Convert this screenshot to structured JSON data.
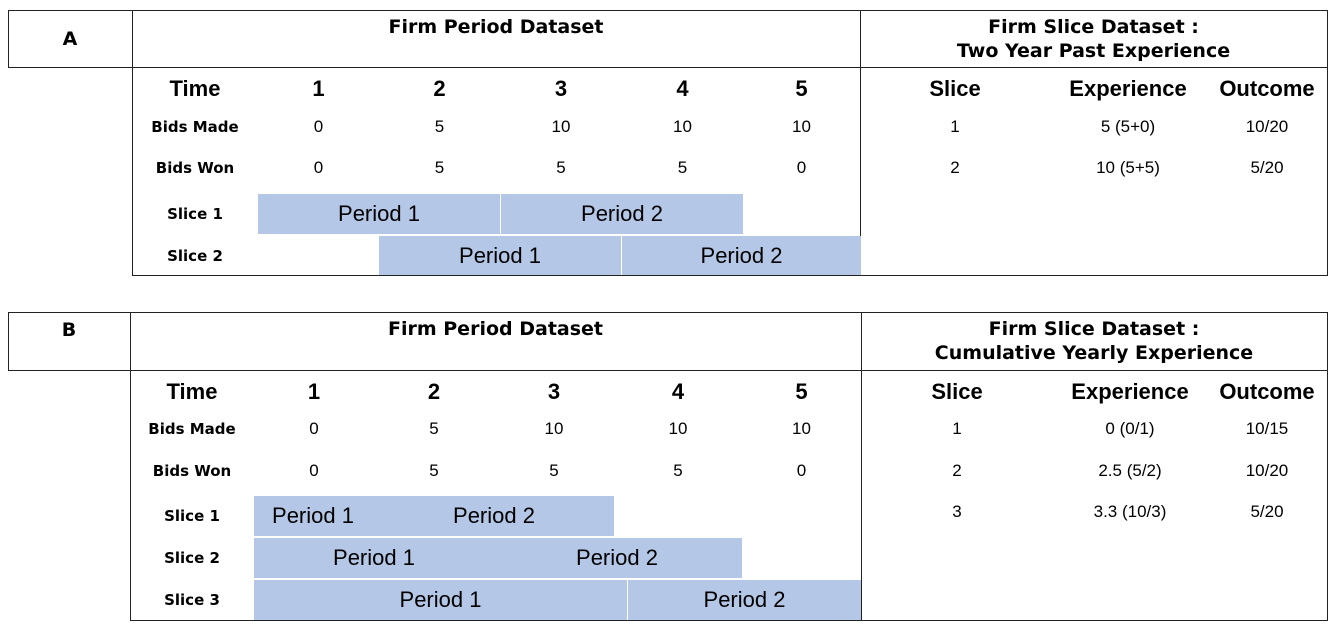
{
  "panels": {
    "a": {
      "letter": "A",
      "left_title": "Firm Period Dataset",
      "right_title_line1": "Firm Slice Dataset :",
      "right_title_line2": "Two Year Past Experience",
      "time_label": "Time",
      "times": [
        "1",
        "2",
        "3",
        "4",
        "5"
      ],
      "bids_made_label": "Bids Made",
      "bids_made": [
        "0",
        "5",
        "10",
        "10",
        "10"
      ],
      "bids_won_label": "Bids Won",
      "bids_won": [
        "0",
        "5",
        "5",
        "5",
        "0"
      ],
      "slices": [
        {
          "label": "Slice 1",
          "periods": [
            "Period 1",
            "Period 2"
          ]
        },
        {
          "label": "Slice 2",
          "periods": [
            "Period 1",
            "Period 2"
          ]
        }
      ],
      "right_headers": [
        "Slice",
        "Experience",
        "Outcome"
      ],
      "right_rows": [
        [
          "1",
          "5 (5+0)",
          "10/20"
        ],
        [
          "2",
          "10 (5+5)",
          "5/20"
        ]
      ]
    },
    "b": {
      "letter": "B",
      "left_title": "Firm Period Dataset",
      "right_title_line1": "Firm Slice Dataset :",
      "right_title_line2": "Cumulative Yearly Experience",
      "time_label": "Time",
      "times": [
        "1",
        "2",
        "3",
        "4",
        "5"
      ],
      "bids_made_label": "Bids Made",
      "bids_made": [
        "0",
        "5",
        "10",
        "10",
        "10"
      ],
      "bids_won_label": "Bids Won",
      "bids_won": [
        "0",
        "5",
        "5",
        "5",
        "0"
      ],
      "slices": [
        {
          "label": "Slice 1",
          "periods": [
            "Period 1",
            "Period 2"
          ]
        },
        {
          "label": "Slice 2",
          "periods": [
            "Period 1",
            "Period 2"
          ]
        },
        {
          "label": "Slice 3",
          "periods": [
            "Period 1",
            "Period 2"
          ]
        }
      ],
      "right_headers": [
        "Slice",
        "Experience",
        "Outcome"
      ],
      "right_rows": [
        [
          "1",
          "0 (0/1)",
          "10/15"
        ],
        [
          "2",
          "2.5 (5/2)",
          "10/20"
        ],
        [
          "3",
          "3.3 (10/3)",
          "5/20"
        ]
      ]
    }
  },
  "colors": {
    "period_fill": "#b4c7e7",
    "line": "#222222"
  }
}
